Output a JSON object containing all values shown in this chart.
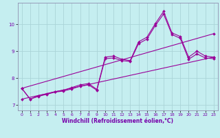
{
  "xlabel": "Windchill (Refroidissement éolien,°C)",
  "bg_color": "#c5eef0",
  "line_color": "#990099",
  "grid_color": "#aad4d8",
  "spine_color": "#9090b0",
  "xlim": [
    -0.5,
    23.5
  ],
  "ylim": [
    6.8,
    10.8
  ],
  "yticks": [
    7,
    8,
    9,
    10
  ],
  "xticks": [
    0,
    1,
    2,
    3,
    4,
    5,
    6,
    7,
    8,
    9,
    10,
    11,
    12,
    13,
    14,
    15,
    16,
    17,
    18,
    19,
    20,
    21,
    22,
    23
  ],
  "series": [
    {
      "x": [
        0,
        1,
        2,
        3,
        4,
        5,
        6,
        7,
        8,
        9,
        10,
        11,
        12,
        13,
        14,
        15,
        16,
        17,
        18,
        19,
        20,
        21,
        22,
        23
      ],
      "y": [
        7.62,
        7.22,
        7.35,
        7.42,
        7.5,
        7.55,
        7.65,
        7.75,
        7.8,
        7.58,
        8.78,
        8.82,
        8.7,
        8.65,
        9.35,
        9.52,
        10.02,
        10.48,
        9.68,
        9.55,
        8.78,
        9.0,
        8.82,
        8.78
      ]
    },
    {
      "x": [
        0,
        1,
        2,
        3,
        4,
        5,
        6,
        7,
        8,
        9,
        10,
        11,
        12,
        13,
        14,
        15,
        16,
        17,
        18,
        19,
        20,
        21,
        22,
        23
      ],
      "y": [
        7.62,
        7.22,
        7.32,
        7.4,
        7.48,
        7.52,
        7.6,
        7.7,
        7.75,
        7.55,
        8.72,
        8.75,
        8.65,
        8.62,
        9.28,
        9.45,
        9.95,
        10.38,
        9.62,
        9.48,
        8.7,
        8.9,
        8.75,
        8.72
      ]
    },
    {
      "x": [
        0,
        23
      ],
      "y": [
        7.62,
        9.65
      ]
    },
    {
      "x": [
        0,
        23
      ],
      "y": [
        7.22,
        8.78
      ]
    }
  ]
}
